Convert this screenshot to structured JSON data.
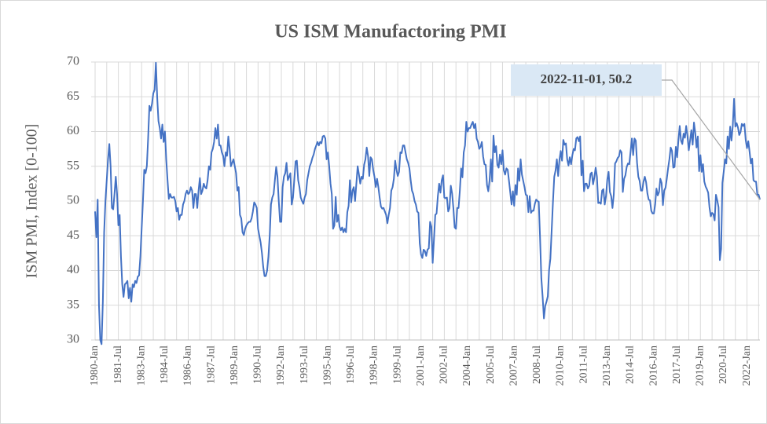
{
  "chart_data": {
    "type": "line",
    "title": "US ISM Manufactoring PMI",
    "y_label": "ISM PMI, Index [0-100]",
    "annotation": "2022-11-01, 50.2",
    "ylim": [
      30,
      70
    ],
    "yticks": [
      30,
      35,
      40,
      45,
      50,
      55,
      60,
      65,
      70
    ],
    "grid": true,
    "categories": [
      "1980-Jan",
      null,
      null,
      null,
      null,
      null,
      null,
      null,
      null,
      null,
      null,
      null,
      null,
      null,
      null,
      null,
      null,
      null,
      "1981-Jul",
      null,
      null,
      null,
      null,
      null,
      null,
      null,
      null,
      null,
      null,
      null,
      null,
      null,
      null,
      null,
      null,
      null,
      "1983-Jan",
      null,
      null,
      null,
      null,
      null,
      null,
      null,
      null,
      null,
      null,
      null,
      null,
      null,
      null,
      null,
      null,
      null,
      "1984-Jul",
      null,
      null,
      null,
      null,
      null,
      null,
      null,
      null,
      null,
      null,
      null,
      null,
      null,
      null,
      null,
      null,
      null,
      "1986-Jan",
      null,
      null,
      null,
      null,
      null,
      null,
      null,
      null,
      null,
      null,
      null,
      null,
      null,
      null,
      null,
      null,
      null,
      "1987-Jul",
      null,
      null,
      null,
      null,
      null,
      null,
      null,
      null,
      null,
      null,
      null,
      null,
      null,
      null,
      null,
      null,
      null,
      "1989-Jan",
      null,
      null,
      null,
      null,
      null,
      null,
      null,
      null,
      null,
      null,
      null,
      null,
      null,
      null,
      null,
      null,
      null,
      "1990-Jul",
      null,
      null,
      null,
      null,
      null,
      null,
      null,
      null,
      null,
      null,
      null,
      null,
      null,
      null,
      null,
      null,
      null,
      "1992-Jan",
      null,
      null,
      null,
      null,
      null,
      null,
      null,
      null,
      null,
      null,
      null,
      null,
      null,
      null,
      null,
      null,
      null,
      "1993-Jul",
      null,
      null,
      null,
      null,
      null,
      null,
      null,
      null,
      null,
      null,
      null,
      null,
      null,
      null,
      null,
      null,
      null,
      "1995-Jan",
      null,
      null,
      null,
      null,
      null,
      null,
      null,
      null,
      null,
      null,
      null,
      null,
      null,
      null,
      null,
      null,
      null,
      "1996-Jul",
      null,
      null,
      null,
      null,
      null,
      null,
      null,
      null,
      null,
      null,
      null,
      null,
      null,
      null,
      null,
      null,
      null,
      "1998-Jan",
      null,
      null,
      null,
      null,
      null,
      null,
      null,
      null,
      null,
      null,
      null,
      null,
      null,
      null,
      null,
      null,
      null,
      "1999-Jul",
      null,
      null,
      null,
      null,
      null,
      null,
      null,
      null,
      null,
      null,
      null,
      null,
      null,
      null,
      null,
      null,
      null,
      "2001-Jan",
      null,
      null,
      null,
      null,
      null,
      null,
      null,
      null,
      null,
      null,
      null,
      null,
      null,
      null,
      null,
      null,
      null,
      "2002-Jul",
      null,
      null,
      null,
      null,
      null,
      null,
      null,
      null,
      null,
      null,
      null,
      null,
      null,
      null,
      null,
      null,
      null,
      "2004-Jan",
      null,
      null,
      null,
      null,
      null,
      null,
      null,
      null,
      null,
      null,
      null,
      null,
      null,
      null,
      null,
      null,
      null,
      "2005-Jul",
      null,
      null,
      null,
      null,
      null,
      null,
      null,
      null,
      null,
      null,
      null,
      null,
      null,
      null,
      null,
      null,
      null,
      "2007-Jan",
      null,
      null,
      null,
      null,
      null,
      null,
      null,
      null,
      null,
      null,
      null,
      null,
      null,
      null,
      null,
      null,
      null,
      "2008-Jul",
      null,
      null,
      null,
      null,
      null,
      null,
      null,
      null,
      null,
      null,
      null,
      null,
      null,
      null,
      null,
      null,
      null,
      "2010-Jan",
      null,
      null,
      null,
      null,
      null,
      null,
      null,
      null,
      null,
      null,
      null,
      null,
      null,
      null,
      null,
      null,
      null,
      "2011-Jul",
      null,
      null,
      null,
      null,
      null,
      null,
      null,
      null,
      null,
      null,
      null,
      null,
      null,
      null,
      null,
      null,
      null,
      "2013-Jan",
      null,
      null,
      null,
      null,
      null,
      null,
      null,
      null,
      null,
      null,
      null,
      null,
      null,
      null,
      null,
      null,
      null,
      "2014-Jul",
      null,
      null,
      null,
      null,
      null,
      null,
      null,
      null,
      null,
      null,
      null,
      null,
      null,
      null,
      null,
      null,
      null,
      "2016-Jan",
      null,
      null,
      null,
      null,
      null,
      null,
      null,
      null,
      null,
      null,
      null,
      null,
      null,
      null,
      null,
      null,
      null,
      "2017-Jul",
      null,
      null,
      null,
      null,
      null,
      null,
      null,
      null,
      null,
      null,
      null,
      null,
      null,
      null,
      null,
      null,
      null,
      "2019-Jan",
      null,
      null,
      null,
      null,
      null,
      null,
      null,
      null,
      null,
      null,
      null,
      null,
      null,
      null,
      null,
      null,
      null,
      "2020-Jul",
      null,
      null,
      null,
      null,
      null,
      null,
      null,
      null,
      null,
      null,
      null,
      null,
      null,
      null,
      null,
      null,
      null,
      "2022-Jan",
      null,
      null,
      null,
      null,
      null,
      null,
      null,
      null,
      null,
      null
    ],
    "series": [
      {
        "name": "US ISM Manufactoring PMI",
        "color": "#4472c4",
        "values": [
          48.5,
          44.8,
          50.2,
          35,
          30,
          29.4,
          35.5,
          45.5,
          50,
          53,
          56,
          58.2,
          55,
          49,
          48.8,
          51,
          53.5,
          51,
          46.5,
          48,
          42,
          38,
          36.2,
          38,
          38.2,
          38.5,
          36,
          37.5,
          35.5,
          38,
          37.6,
          38.5,
          38.2,
          39.1,
          39.3,
          42,
          46,
          50,
          54.5,
          54,
          55,
          59,
          63.7,
          63,
          64,
          65.5,
          66,
          69.9,
          65,
          61.5,
          60.5,
          59,
          61,
          58.5,
          60,
          56,
          53,
          50.3,
          51,
          50.5,
          50.5,
          50.6,
          50,
          48.5,
          49,
          47.3,
          48,
          48,
          49.5,
          50,
          51,
          51.5,
          51,
          51.2,
          52,
          51.5,
          49,
          51,
          51,
          49,
          51.5,
          53.3,
          51,
          51.5,
          52.5,
          52,
          51.8,
          53,
          55,
          54.5,
          57,
          57.5,
          58.5,
          60.5,
          59,
          61,
          58,
          58,
          57,
          56.5,
          55,
          57,
          56.5,
          59.3,
          57.5,
          55,
          55.5,
          56,
          55,
          54,
          51.5,
          52,
          48,
          47.5,
          45.5,
          45.1,
          46,
          46.5,
          46.8,
          47,
          47,
          47.5,
          48.5,
          49.8,
          49.5,
          49,
          46,
          45,
          44,
          42.5,
          40.5,
          39.2,
          39.2,
          40,
          42,
          45,
          49.5,
          50.5,
          51,
          53,
          54.9,
          53.5,
          50,
          47,
          47,
          52,
          53.5,
          54,
          55.5,
          53,
          53.5,
          54,
          49.5,
          50.5,
          53,
          55.7,
          55.8,
          53,
          52,
          50.5,
          50,
          49.6,
          50.5,
          51,
          53,
          54,
          55,
          55.5,
          56.2,
          56.7,
          57.5,
          58,
          58.5,
          58,
          58.5,
          58.3,
          59.3,
          59.4,
          59,
          56,
          57,
          55,
          52.5,
          51,
          46,
          46.5,
          50.6,
          47,
          48,
          46.3,
          45.8,
          46.2,
          45.5,
          46,
          45.5,
          48.4,
          49.3,
          53,
          49.8,
          51.5,
          52,
          50,
          52.5,
          55,
          53.8,
          52.5,
          53.5,
          53.2,
          55.2,
          56,
          57.7,
          56.5,
          53.6,
          56.3,
          56,
          54.5,
          53.5,
          52,
          53.2,
          52,
          50.5,
          49.2,
          48.9,
          49,
          48.5,
          48,
          46.8,
          48,
          49,
          51.5,
          52,
          53.2,
          55.8,
          54.5,
          53.6,
          54.2,
          57,
          56.9,
          58,
          58,
          57,
          56,
          55.5,
          54.7,
          53,
          51.5,
          51,
          50,
          49.5,
          48.5,
          48.3,
          43.9,
          42.3,
          41.8,
          43,
          42.8,
          42.1,
          43,
          43.2,
          47,
          46.3,
          41.1,
          44.5,
          48,
          48.2,
          50.7,
          52.5,
          51.2,
          53,
          53.7,
          50.5,
          50.4,
          50.5,
          48.5,
          49,
          52.2,
          51.1,
          49,
          46.2,
          46,
          49,
          49,
          51.5,
          54.7,
          53.4,
          57,
          58,
          61.4,
          60,
          60.5,
          60.5,
          61,
          61.4,
          60.5,
          61.1,
          59,
          58.5,
          57.5,
          57.8,
          58.5,
          56.4,
          55.3,
          55.2,
          52.3,
          51.4,
          53,
          56,
          52.8,
          59.4,
          57,
          57.9,
          55.2,
          54.8,
          56.7,
          55.3,
          57.3,
          54.4,
          53.8,
          54.7,
          54.5,
          52.9,
          51.2,
          49.5,
          51.4,
          49.3,
          52.3,
          50.9,
          54.7,
          52.9,
          56,
          53.8,
          52.9,
          52,
          50.9,
          50.8,
          48.4,
          50.7,
          48.3,
          48.6,
          48.6,
          49.6,
          50.2,
          50,
          49.9,
          44.8,
          38.9,
          36.2,
          33.1,
          34.9,
          35.5,
          36.3,
          40.1,
          41.7,
          45.8,
          49.9,
          53.5,
          54.4,
          56,
          53.6,
          55.9,
          57.2,
          55.8,
          58.8,
          58.1,
          58.3,
          56,
          55.1,
          56.3,
          55.3,
          56.6,
          57.5,
          57.3,
          59,
          59.2,
          58.6,
          59.3,
          53.7,
          55.8,
          51.4,
          52.5,
          52.5,
          51.8,
          52.2,
          53.9,
          54.1,
          52.4,
          53.4,
          54.8,
          53.5,
          49.7,
          49.8,
          49.6,
          51.5,
          51.7,
          49.5,
          50.7,
          53.1,
          54.2,
          51.3,
          50.7,
          49,
          50.9,
          55.4,
          55.7,
          56.2,
          56.4,
          57.3,
          57,
          51.3,
          53.2,
          53.7,
          54.9,
          55.4,
          55.3,
          57.1,
          59,
          56.6,
          59,
          58.7,
          55.5,
          53.5,
          52.9,
          51.5,
          51.5,
          52.8,
          53.5,
          52.7,
          51.1,
          50.2,
          50.1,
          48.6,
          48.2,
          48.2,
          49.5,
          51.8,
          50.8,
          51.3,
          53.2,
          52.6,
          49.4,
          51.5,
          51.9,
          53.2,
          54.7,
          56,
          57.7,
          57.2,
          54.8,
          54.9,
          57.8,
          56.3,
          58.8,
          60.8,
          58.7,
          58.2,
          59.7,
          59.1,
          60.8,
          59.3,
          57.3,
          58.7,
          60.2,
          58.1,
          61.3,
          59.8,
          57.7,
          59.3,
          54.3,
          56.6,
          54.2,
          55.3,
          52.8,
          52.1,
          51.7,
          51.2,
          49.1,
          47.8,
          48.3,
          48.1,
          47.2,
          50.9,
          50.1,
          49.1,
          41.5,
          43.1,
          52.6,
          54.2,
          56,
          55.4,
          59.3,
          57.5,
          60.7,
          58.7,
          60.8,
          64.7,
          60.7,
          61.2,
          60.6,
          59.5,
          59.9,
          61.1,
          60.8,
          61.1,
          58.8,
          57.6,
          58.6,
          57.1,
          55.4,
          56.1,
          53,
          52.8,
          52.8,
          50.9,
          50.9,
          50.2
        ]
      }
    ]
  }
}
